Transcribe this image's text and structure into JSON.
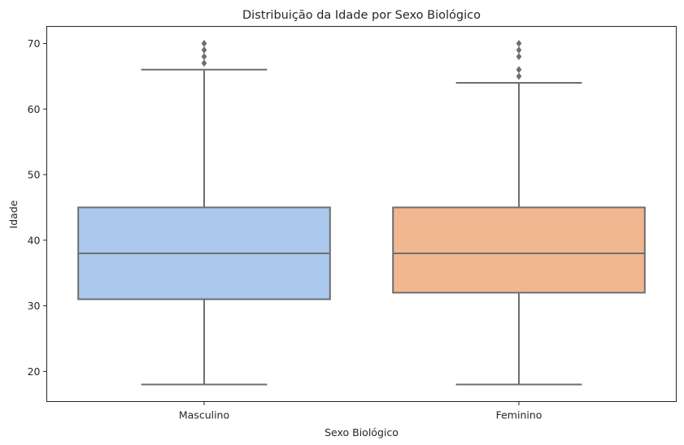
{
  "chart_data": {
    "type": "box",
    "title": "Distribuição da Idade por Sexo Biológico",
    "xlabel": "Sexo Biológico",
    "ylabel": "Idade",
    "categories": [
      "Masculino",
      "Feminino"
    ],
    "ylim": [
      15.4,
      72.6
    ],
    "yticks": [
      20,
      30,
      40,
      50,
      60,
      70
    ],
    "grid": false,
    "boxes": [
      {
        "category": "Masculino",
        "whisker_low": 18,
        "q1": 31,
        "median": 38,
        "q3": 45,
        "whisker_high": 66,
        "outliers": [
          67,
          68,
          69,
          70
        ],
        "color": "#abc9ed"
      },
      {
        "category": "Feminino",
        "whisker_low": 18,
        "q1": 32,
        "median": 38,
        "q3": 45,
        "whisker_high": 64,
        "outliers": [
          65,
          66,
          68,
          69,
          70
        ],
        "color": "#f0b791"
      }
    ],
    "line_color": "#6e6e6e"
  }
}
